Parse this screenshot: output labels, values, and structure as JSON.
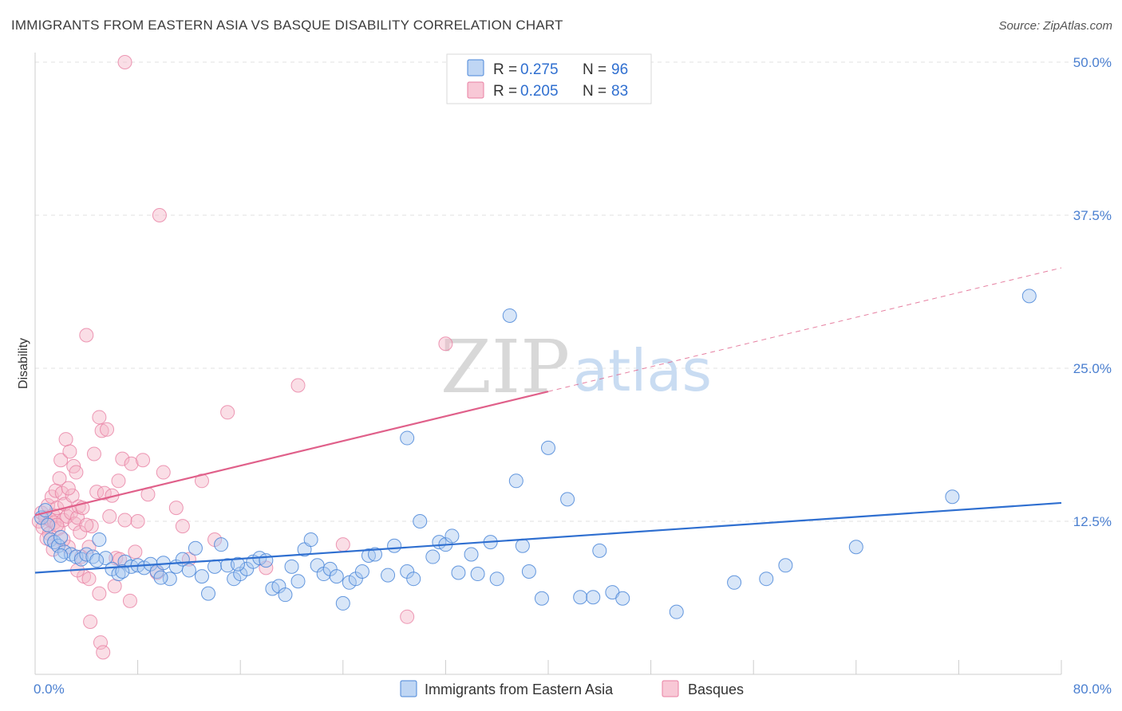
{
  "header": {
    "title": "IMMIGRANTS FROM EASTERN ASIA VS BASQUE DISABILITY CORRELATION CHART",
    "source": "Source: ZipAtlas.com"
  },
  "watermark": {
    "zip": "ZIP",
    "atlas": "atlas"
  },
  "legend_top": {
    "rows": [
      {
        "r_label": "R =",
        "r_value": "0.275",
        "n_label": "N =",
        "n_value": "96",
        "color": "#a9c8f0"
      },
      {
        "r_label": "R =",
        "r_value": "0.205",
        "n_label": "N =",
        "n_value": "83",
        "color": "#f5b5c8"
      }
    ]
  },
  "legend_bottom": {
    "items": [
      {
        "label": "Immigrants from Eastern Asia",
        "color": "#a9c8f0"
      },
      {
        "label": "Basques",
        "color": "#f5b5c8"
      }
    ]
  },
  "chart_data": {
    "type": "scatter",
    "title": "IMMIGRANTS FROM EASTERN ASIA VS BASQUE DISABILITY CORRELATION CHART",
    "xlabel": "",
    "ylabel": "Disability",
    "xlim": [
      0,
      80
    ],
    "ylim": [
      0,
      50
    ],
    "x_tick_labels": [
      "0.0%",
      "80.0%"
    ],
    "y_tick_labels": [
      "12.5%",
      "25.0%",
      "37.5%",
      "50.0%"
    ],
    "y_ticks": [
      12.5,
      25.0,
      37.5,
      50.0
    ],
    "grid": "horizontal dashed",
    "legend_position": "top-center",
    "colors": {
      "blue_point": "#a9c8f0",
      "blue_edge": "#4a86d8",
      "blue_line": "#2f6fd0",
      "pink_point": "#f5b5c8",
      "pink_edge": "#e97fa3",
      "pink_line": "#e0608a"
    },
    "series": [
      {
        "name": "Immigrants from Eastern Asia",
        "r": 0.275,
        "n": 96,
        "trend": {
          "x0": 0,
          "y0": 8.3,
          "x1": 80,
          "y1": 14.0
        },
        "points": [
          [
            0.5,
            12.8
          ],
          [
            0.8,
            13.4
          ],
          [
            1.0,
            12.2
          ],
          [
            1.2,
            11.0
          ],
          [
            1.5,
            10.8
          ],
          [
            1.8,
            10.5
          ],
          [
            2.0,
            11.2
          ],
          [
            2.3,
            10.0
          ],
          [
            2.8,
            9.8
          ],
          [
            3.2,
            9.6
          ],
          [
            3.6,
            9.4
          ],
          [
            4.0,
            9.8
          ],
          [
            4.5,
            9.6
          ],
          [
            5.0,
            11.0
          ],
          [
            5.5,
            9.5
          ],
          [
            6.0,
            8.6
          ],
          [
            6.5,
            8.2
          ],
          [
            7.0,
            9.2
          ],
          [
            7.5,
            8.8
          ],
          [
            8.0,
            8.9
          ],
          [
            8.5,
            8.7
          ],
          [
            9.0,
            9.0
          ],
          [
            9.5,
            8.4
          ],
          [
            10.0,
            9.1
          ],
          [
            10.5,
            7.8
          ],
          [
            11.0,
            8.8
          ],
          [
            11.5,
            9.4
          ],
          [
            12.0,
            8.5
          ],
          [
            12.5,
            10.3
          ],
          [
            13.0,
            8.0
          ],
          [
            13.5,
            6.6
          ],
          [
            14.0,
            8.8
          ],
          [
            14.5,
            10.6
          ],
          [
            15.0,
            8.9
          ],
          [
            15.5,
            7.8
          ],
          [
            16.0,
            8.2
          ],
          [
            16.5,
            8.6
          ],
          [
            17.0,
            9.2
          ],
          [
            17.5,
            9.5
          ],
          [
            18.0,
            9.3
          ],
          [
            18.5,
            7.0
          ],
          [
            19.0,
            7.2
          ],
          [
            19.5,
            6.5
          ],
          [
            20.0,
            8.8
          ],
          [
            20.5,
            7.6
          ],
          [
            21.0,
            10.2
          ],
          [
            21.5,
            11.0
          ],
          [
            22.0,
            8.9
          ],
          [
            22.5,
            8.2
          ],
          [
            23.0,
            8.6
          ],
          [
            23.5,
            8.0
          ],
          [
            24.0,
            5.8
          ],
          [
            24.5,
            7.5
          ],
          [
            25.0,
            7.8
          ],
          [
            25.5,
            8.4
          ],
          [
            26.0,
            9.7
          ],
          [
            26.5,
            9.8
          ],
          [
            27.5,
            8.1
          ],
          [
            28.0,
            10.5
          ],
          [
            29.0,
            8.4
          ],
          [
            29.5,
            7.8
          ],
          [
            30.0,
            12.5
          ],
          [
            31.0,
            9.6
          ],
          [
            31.5,
            10.8
          ],
          [
            32.0,
            10.6
          ],
          [
            32.5,
            11.3
          ],
          [
            33.0,
            8.3
          ],
          [
            34.0,
            9.8
          ],
          [
            34.5,
            8.2
          ],
          [
            35.5,
            10.8
          ],
          [
            36.0,
            7.8
          ],
          [
            37.0,
            29.3
          ],
          [
            37.5,
            15.8
          ],
          [
            38.0,
            10.5
          ],
          [
            38.5,
            8.4
          ],
          [
            39.5,
            6.2
          ],
          [
            40.0,
            18.5
          ],
          [
            41.5,
            14.3
          ],
          [
            42.5,
            6.3
          ],
          [
            43.5,
            6.3
          ],
          [
            44.0,
            10.1
          ],
          [
            45.0,
            6.7
          ],
          [
            45.8,
            6.2
          ],
          [
            50.0,
            5.1
          ],
          [
            54.5,
            7.5
          ],
          [
            57.0,
            7.8
          ],
          [
            58.5,
            8.9
          ],
          [
            64.0,
            10.4
          ],
          [
            71.5,
            14.5
          ],
          [
            29.0,
            19.3
          ],
          [
            77.5,
            30.9
          ],
          [
            2.0,
            9.7
          ],
          [
            4.8,
            9.3
          ],
          [
            6.8,
            8.4
          ],
          [
            9.8,
            7.9
          ],
          [
            15.8,
            9.0
          ]
        ]
      },
      {
        "name": "Basques",
        "r": 0.205,
        "n": 83,
        "trend": {
          "x0": 0,
          "y0": 13.0,
          "x1": 40,
          "y1": 23.1,
          "dash_x1": 80,
          "dash_y1": 33.2
        },
        "points": [
          [
            0.3,
            12.5
          ],
          [
            0.5,
            13.2
          ],
          [
            0.6,
            12.0
          ],
          [
            0.8,
            12.8
          ],
          [
            1.0,
            13.8
          ],
          [
            1.1,
            11.5
          ],
          [
            1.2,
            12.6
          ],
          [
            1.3,
            14.5
          ],
          [
            1.4,
            13.0
          ],
          [
            1.5,
            12.4
          ],
          [
            1.6,
            15.0
          ],
          [
            1.7,
            13.6
          ],
          [
            1.8,
            11.9
          ],
          [
            1.9,
            16.0
          ],
          [
            2.0,
            17.5
          ],
          [
            2.1,
            14.8
          ],
          [
            2.2,
            12.6
          ],
          [
            2.3,
            13.9
          ],
          [
            2.4,
            19.2
          ],
          [
            2.5,
            12.9
          ],
          [
            2.6,
            10.4
          ],
          [
            2.7,
            18.2
          ],
          [
            2.8,
            13.2
          ],
          [
            2.9,
            14.6
          ],
          [
            3.0,
            17.0
          ],
          [
            3.1,
            12.3
          ],
          [
            3.2,
            16.5
          ],
          [
            3.3,
            12.8
          ],
          [
            3.4,
            13.7
          ],
          [
            3.5,
            11.6
          ],
          [
            3.6,
            9.6
          ],
          [
            3.8,
            8.0
          ],
          [
            4.0,
            27.7
          ],
          [
            4.2,
            10.4
          ],
          [
            4.4,
            12.1
          ],
          [
            4.6,
            18.0
          ],
          [
            4.8,
            14.9
          ],
          [
            5.0,
            21.0
          ],
          [
            5.2,
            19.9
          ],
          [
            5.4,
            14.8
          ],
          [
            5.6,
            20.0
          ],
          [
            5.8,
            12.9
          ],
          [
            6.0,
            14.6
          ],
          [
            6.3,
            9.5
          ],
          [
            6.5,
            15.8
          ],
          [
            6.8,
            17.6
          ],
          [
            7.0,
            12.6
          ],
          [
            7.5,
            17.2
          ],
          [
            8.0,
            12.5
          ],
          [
            8.4,
            17.5
          ],
          [
            8.8,
            14.7
          ],
          [
            9.5,
            8.3
          ],
          [
            10.0,
            16.5
          ],
          [
            11.0,
            13.6
          ],
          [
            11.5,
            12.1
          ],
          [
            12.0,
            9.4
          ],
          [
            13.0,
            15.8
          ],
          [
            14.0,
            11.0
          ],
          [
            15.0,
            21.4
          ],
          [
            20.5,
            23.6
          ],
          [
            24.0,
            10.6
          ],
          [
            29.0,
            4.7
          ],
          [
            32.0,
            27.0
          ],
          [
            7.0,
            50.0
          ],
          [
            9.7,
            37.5
          ],
          [
            4.3,
            4.3
          ],
          [
            5.1,
            2.6
          ],
          [
            5.3,
            1.8
          ],
          [
            6.2,
            7.2
          ],
          [
            7.4,
            6.0
          ],
          [
            5.0,
            6.6
          ],
          [
            4.2,
            7.8
          ],
          [
            3.3,
            8.5
          ],
          [
            1.4,
            10.2
          ],
          [
            2.2,
            11.0
          ],
          [
            2.6,
            15.2
          ],
          [
            3.7,
            13.6
          ],
          [
            4.0,
            12.2
          ],
          [
            6.6,
            9.4
          ],
          [
            7.8,
            10.0
          ],
          [
            0.9,
            11.1
          ],
          [
            1.7,
            12.2
          ],
          [
            18.0,
            8.7
          ]
        ]
      }
    ]
  }
}
